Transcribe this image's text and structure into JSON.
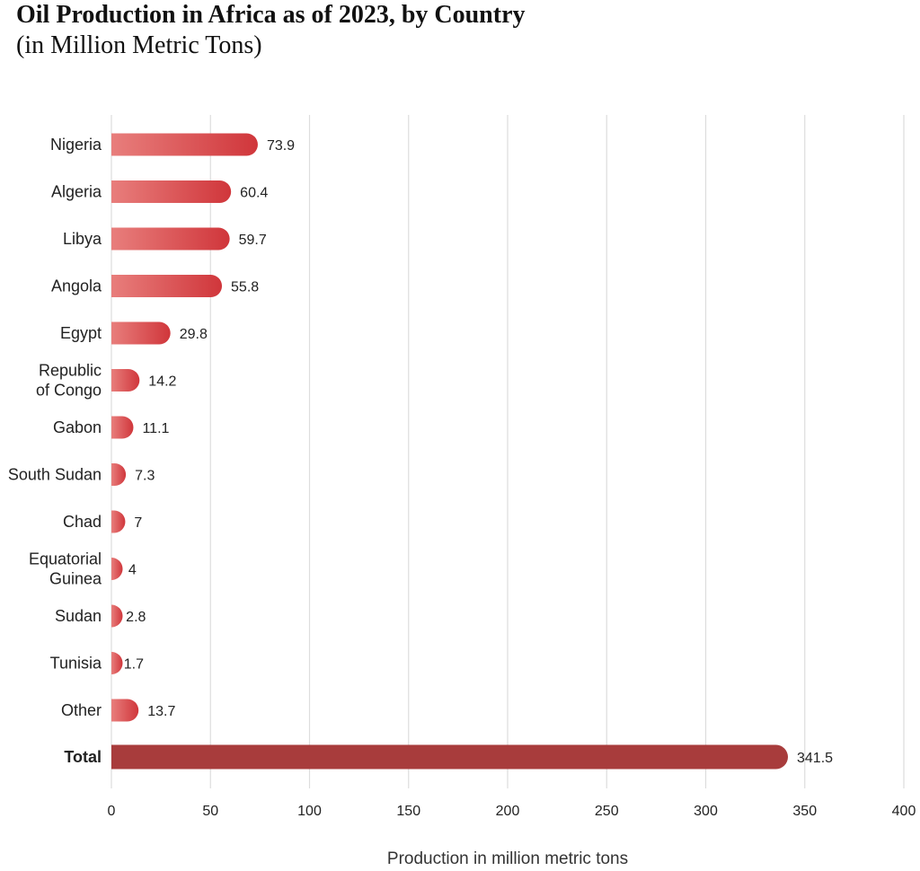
{
  "title": "Oil Production in Africa as of 2023, by Country",
  "subtitle": "(in Million Metric Tons)",
  "chart_data": {
    "type": "bar",
    "orientation": "horizontal",
    "categories": [
      "Nigeria",
      "Algeria",
      "Libya",
      "Angola",
      "Egypt",
      "Republic of Congo",
      "Gabon",
      "South Sudan",
      "Chad",
      "Equatorial Guinea",
      "Sudan",
      "Tunisia",
      "Other",
      "Total"
    ],
    "label_lines": [
      [
        "Nigeria"
      ],
      [
        "Algeria"
      ],
      [
        "Libya"
      ],
      [
        "Angola"
      ],
      [
        "Egypt"
      ],
      [
        "Republic",
        "of Congo"
      ],
      [
        "Gabon"
      ],
      [
        "South Sudan"
      ],
      [
        "Chad"
      ],
      [
        "Equatorial",
        "Guinea"
      ],
      [
        "Sudan"
      ],
      [
        "Tunisia"
      ],
      [
        "Other"
      ],
      [
        "Total"
      ]
    ],
    "values": [
      73.9,
      60.4,
      59.7,
      55.8,
      29.8,
      14.2,
      11.1,
      7.3,
      7,
      4,
      2.8,
      1.7,
      13.7,
      341.5
    ],
    "value_labels": [
      "73.9",
      "60.4",
      "59.7",
      "55.8",
      "29.8",
      "14.2",
      "11.1",
      "7.3",
      "7",
      "4",
      "2.8",
      "1.7",
      "13.7",
      "341.5"
    ],
    "title": "Oil Production in Africa as of 2023, by Country",
    "subtitle": "(in Million Metric Tons)",
    "xlabel": "Production in million metric tons",
    "ylabel": "",
    "xlim": [
      0,
      400
    ],
    "xticks": [
      0,
      50,
      100,
      150,
      200,
      250,
      300,
      350,
      400
    ],
    "xtick_labels": [
      "0",
      "50",
      "100",
      "150",
      "200",
      "250",
      "300",
      "350",
      "400"
    ],
    "grid": true,
    "legend": "none",
    "highlight_category": "Total",
    "colors": {
      "bar_start": "#e87e7c",
      "bar_end": "#d0363b",
      "total_bar": "#a83c3c",
      "grid": "#dddddd",
      "text": "#222222"
    }
  }
}
